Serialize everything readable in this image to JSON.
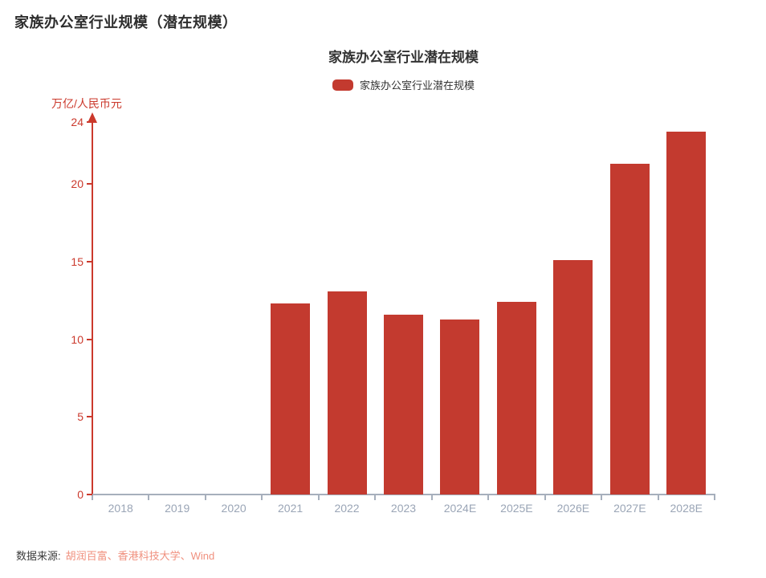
{
  "page": {
    "title": "家族办公室行业规模（潜在规模）"
  },
  "chart": {
    "title": "家族办公室行业潜在规模",
    "y_unit_label": "万亿/人民币元"
  },
  "chart_data": {
    "type": "bar",
    "title": "家族办公室行业潜在规模",
    "categories": [
      "2018",
      "2019",
      "2020",
      "2021",
      "2022",
      "2023",
      "2024E",
      "2025E",
      "2026E",
      "2027E",
      "2028E"
    ],
    "series": [
      {
        "name": "家族办公室行业潜在规模",
        "values": [
          0,
          0,
          0,
          12.3,
          13.1,
          11.6,
          11.3,
          12.4,
          15.1,
          21.3,
          23.4
        ]
      }
    ],
    "xlabel": "",
    "ylabel": "万亿/人民币元",
    "yticks": [
      0,
      5,
      10,
      15,
      20,
      24
    ],
    "ylim": [
      0,
      24
    ],
    "grid": false,
    "legend_position": "top-center",
    "bar_color": "#c33a2f",
    "y_axis_color": "#cb392c",
    "x_axis_color": "#a6afbc",
    "x_label_color": "#9aa5b6"
  },
  "footer": {
    "label": "数据来源:",
    "sources": "胡润百富、香港科技大学、Wind"
  }
}
